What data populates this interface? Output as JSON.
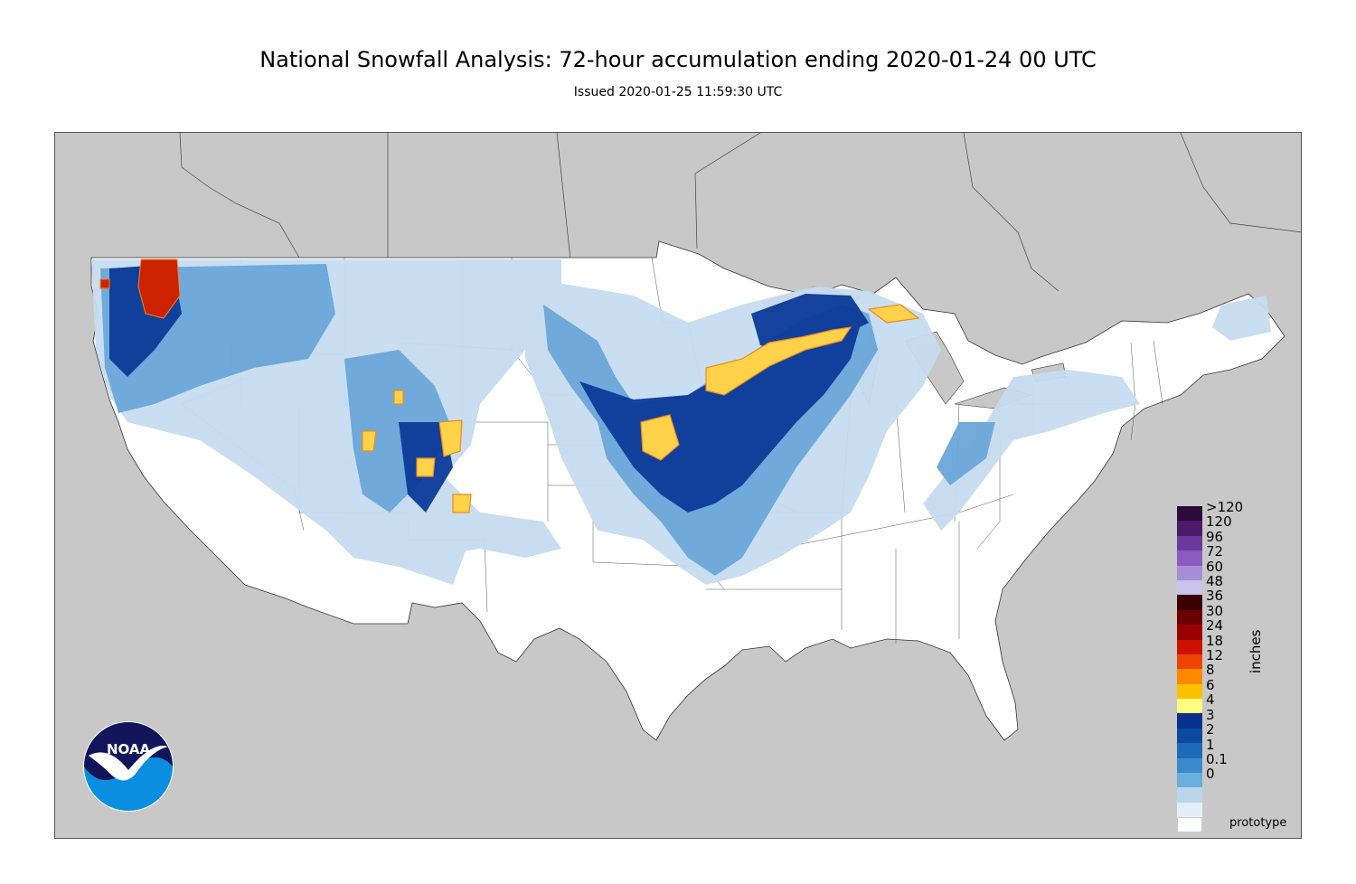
{
  "header": {
    "title": "National Snowfall Analysis: 72-hour accumulation ending 2020-01-24 00 UTC",
    "subtitle": "Issued 2020-01-25 11:59:30 UTC"
  },
  "legend": {
    "unit": "inches",
    "levels": [
      ">120",
      "120",
      "96",
      "72",
      "60",
      "48",
      "36",
      "30",
      "24",
      "18",
      "12",
      "8",
      "6",
      "4",
      "3",
      "2",
      "1",
      "0.1",
      "0"
    ],
    "colors": [
      "#2a0b3a",
      "#4b1a6b",
      "#6a3a9a",
      "#8a5cc0",
      "#a88ed8",
      "#c9c3ec",
      "#3a0000",
      "#6a0000",
      "#990000",
      "#cc1100",
      "#ee4400",
      "#ff8800",
      "#ffc000",
      "#ffff80",
      "#08308c",
      "#0c4aa0",
      "#1d6ab8",
      "#3b8bcc",
      "#6aaede"
    ],
    "bottom_colors": [
      "#b9d6ea",
      "#e4eef8",
      "#ffffff"
    ]
  },
  "colors": {
    "ocean": "#c8c8c8",
    "land": "#ffffff",
    "light_blue": "#c6dcef",
    "mid_blue": "#6aa6d8",
    "dark_blue": "#0c3a99",
    "yellow": "#ffd24a",
    "orange": "#f08a1c",
    "red": "#cc2200"
  },
  "footer": {
    "note": "prototype"
  },
  "logo": {
    "text": "NOAA"
  }
}
